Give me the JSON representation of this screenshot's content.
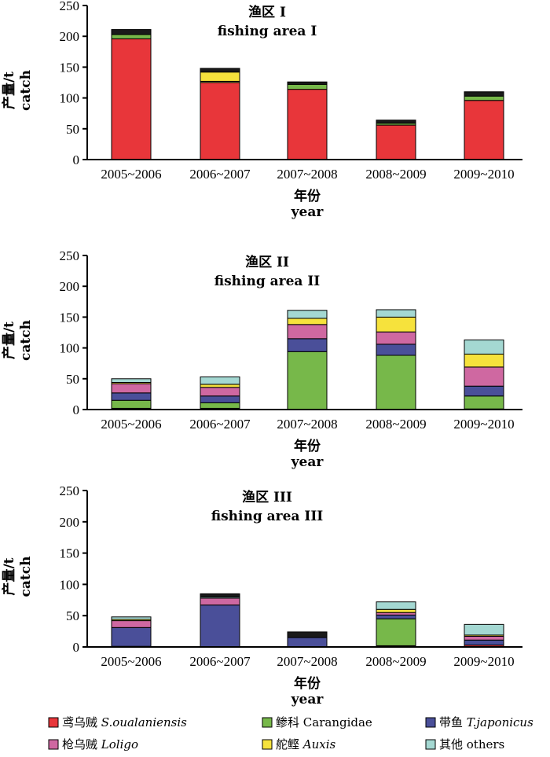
{
  "y_axis_label": [
    "产量/t",
    "catch"
  ],
  "x_axis_label": [
    "年份",
    "year"
  ],
  "legend": [
    {
      "key": "S",
      "cn": "鸢乌贼 ",
      "en": "S.oualaniensis",
      "italic": true,
      "color": "#e8363a"
    },
    {
      "key": "C",
      "cn": "鲹科 ",
      "en": "Carangidae",
      "italic": false,
      "color": "#77b84a"
    },
    {
      "key": "T",
      "cn": "带鱼 ",
      "en": "T.japonicus",
      "italic": true,
      "color": "#4a4f99"
    },
    {
      "key": "L",
      "cn": "枪乌贼 ",
      "en": "Loligo",
      "italic": true,
      "color": "#cf68a1"
    },
    {
      "key": "A",
      "cn": "舵鲣 ",
      "en": "Auxis",
      "italic": true,
      "color": "#f6e23c"
    },
    {
      "key": "O",
      "cn": "其他 ",
      "en": "others",
      "italic": false,
      "color": "#a4d8d2"
    }
  ],
  "chart_data": [
    {
      "type": "bar",
      "stacked": true,
      "title": [
        "渔区 I",
        "fishing area  I"
      ],
      "categories": [
        "2005~2006",
        "2006~2007",
        "2007~2008",
        "2008~2009",
        "2009~2010"
      ],
      "ylim": [
        0,
        250
      ],
      "yticks": [
        0,
        50,
        100,
        150,
        200,
        250
      ],
      "xlabel": "年份 year",
      "ylabel": "产量/t catch",
      "series": [
        {
          "key": "S",
          "values": [
            196,
            125,
            114,
            56,
            96
          ]
        },
        {
          "key": "C",
          "values": [
            7,
            2,
            8,
            3,
            7
          ]
        },
        {
          "key": "T",
          "values": [
            0,
            0,
            0,
            0,
            0
          ]
        },
        {
          "key": "L",
          "values": [
            0,
            0,
            0,
            0,
            0
          ]
        },
        {
          "key": "A",
          "values": [
            0,
            15,
            0,
            0,
            0
          ]
        },
        {
          "key": "O",
          "values": [
            0,
            0,
            0,
            0,
            0
          ]
        },
        {
          "key": "X",
          "color": "#1a1a1a",
          "values": [
            8,
            6,
            4,
            5,
            7
          ]
        }
      ]
    },
    {
      "type": "bar",
      "stacked": true,
      "title": [
        "渔区 II",
        "fishing area  II"
      ],
      "categories": [
        "2005~2006",
        "2006~2007",
        "2007~2008",
        "2008~2009",
        "2009~2010"
      ],
      "ylim": [
        0,
        250
      ],
      "yticks": [
        0,
        50,
        100,
        150,
        200,
        250
      ],
      "xlabel": "年份 year",
      "ylabel": "产量/t catch",
      "series": [
        {
          "key": "S",
          "values": [
            2,
            2,
            0,
            0,
            1
          ]
        },
        {
          "key": "C",
          "values": [
            13,
            9,
            94,
            88,
            21
          ]
        },
        {
          "key": "T",
          "values": [
            12,
            11,
            21,
            18,
            16
          ]
        },
        {
          "key": "L",
          "values": [
            15,
            14,
            23,
            20,
            31
          ]
        },
        {
          "key": "A",
          "values": [
            2,
            5,
            10,
            24,
            21
          ]
        },
        {
          "key": "O",
          "values": [
            6,
            12,
            13,
            12,
            23
          ]
        }
      ]
    },
    {
      "type": "bar",
      "stacked": true,
      "title": [
        "渔区 III",
        "fishing area  III"
      ],
      "categories": [
        "2005~2006",
        "2006~2007",
        "2007~2008",
        "2008~2009",
        "2009~2010"
      ],
      "ylim": [
        0,
        250
      ],
      "yticks": [
        0,
        50,
        100,
        150,
        200,
        250
      ],
      "xlabel": "年份 year",
      "ylabel": "产量/t catch",
      "series": [
        {
          "key": "S",
          "values": [
            1,
            0,
            0,
            2,
            3
          ]
        },
        {
          "key": "C",
          "values": [
            0,
            0,
            0,
            43,
            0
          ]
        },
        {
          "key": "T",
          "values": [
            30,
            67,
            15,
            6,
            8
          ]
        },
        {
          "key": "L",
          "values": [
            11,
            11,
            0,
            4,
            6
          ]
        },
        {
          "key": "A",
          "values": [
            2,
            0,
            0,
            5,
            2
          ]
        },
        {
          "key": "O",
          "values": [
            4,
            2,
            0,
            12,
            17
          ]
        },
        {
          "key": "X",
          "color": "#1a1a1a",
          "values": [
            0,
            5,
            9,
            0,
            0
          ]
        }
      ]
    }
  ]
}
